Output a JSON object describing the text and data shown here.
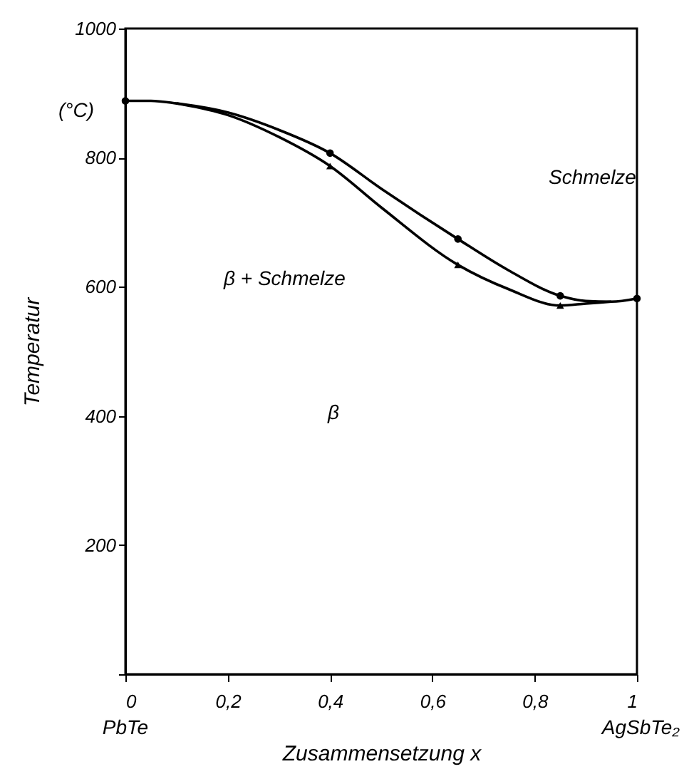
{
  "chart_data": {
    "type": "line",
    "xlabel": "Zusammensetzung x",
    "ylabel": "Temperatur",
    "xlim": [
      0,
      1
    ],
    "ylim": [
      0,
      1000
    ],
    "xticks": [
      0,
      {
        "value": 0.2,
        "label": "0,2"
      },
      {
        "value": 0.4,
        "label": "0,4"
      },
      {
        "value": 0.6,
        "label": "0,6"
      },
      {
        "value": 0.8,
        "label": "0,8"
      },
      1
    ],
    "yticks": [
      {
        "value": 0,
        "label": null
      },
      200,
      400,
      600,
      800,
      1000
    ],
    "grid": false,
    "series": [
      {
        "type": "line",
        "color": "#000000",
        "marker": "none",
        "x": [
          0,
          0.05,
          0.1,
          0.2,
          0.3,
          0.4,
          0.5,
          0.65,
          0.75,
          0.85,
          0.9,
          0.95,
          1
        ],
        "values": [
          888,
          888,
          884,
          870,
          843,
          807,
          752,
          674,
          625,
          586,
          578,
          577,
          582
        ]
      },
      {
        "type": "line",
        "color": "#000000",
        "marker": "none",
        "x": [
          0.1,
          0.2,
          0.3,
          0.4,
          0.5,
          0.65,
          0.75,
          0.85,
          0.9,
          0.95
        ],
        "values": [
          884,
          866,
          832,
          787,
          723,
          634,
          596,
          571,
          574,
          577
        ]
      },
      {
        "type": "scatter",
        "color": "#000000",
        "marker": "circle",
        "x": [
          0,
          0.4,
          0.65,
          0.85,
          1
        ],
        "values": [
          888,
          807,
          674,
          586,
          582
        ]
      },
      {
        "type": "scatter",
        "color": "#000000",
        "marker": "triangle",
        "x": [
          0.4,
          0.65,
          0.85
        ],
        "values": [
          787,
          634,
          571
        ]
      }
    ],
    "annotations": [
      "(°C)",
      "Schmelze",
      "β + Schmelze",
      "β",
      "PbTe",
      "AgSbTe₂"
    ]
  }
}
